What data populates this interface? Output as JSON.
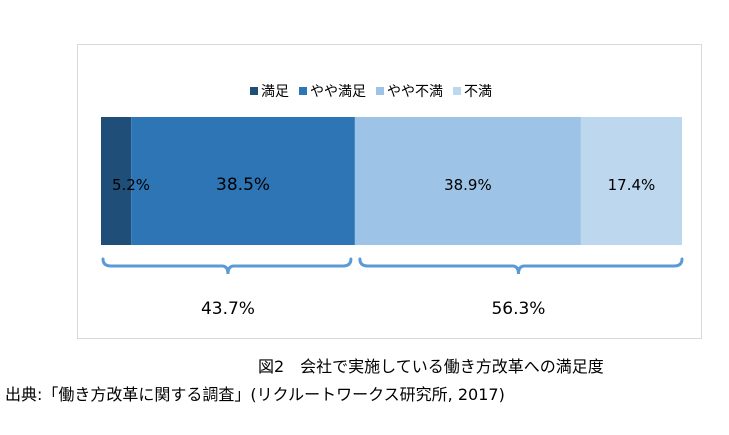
{
  "chart_data": {
    "type": "bar",
    "orientation": "horizontal-stacked-100",
    "categories": [
      ""
    ],
    "series": [
      {
        "name": "満足",
        "values": [
          5.2
        ],
        "label": "5.2%",
        "color": "#1f4e79"
      },
      {
        "name": "やや満足",
        "values": [
          38.5
        ],
        "label": "38.5%",
        "color": "#2e75b6"
      },
      {
        "name": "やや不満",
        "values": [
          38.9
        ],
        "label": "38.9%",
        "color": "#9dc3e6"
      },
      {
        "name": "不満",
        "values": [
          17.4
        ],
        "label": "17.4%",
        "color": "#bdd7ee"
      }
    ],
    "xlim": [
      0,
      100
    ],
    "legend_position": "top",
    "groups": [
      {
        "label": "43.7%",
        "value": 43.7,
        "from": 0,
        "to": 43.7
      },
      {
        "label": "56.3%",
        "value": 56.3,
        "from": 43.7,
        "to": 100
      }
    ],
    "bracket_color": "#5b9bd5"
  },
  "caption": "図2　会社で実施している働き方改革への満足度",
  "source": "出典:「働き方改革に関する調査」(リクルートワークス研究所, 2017)"
}
